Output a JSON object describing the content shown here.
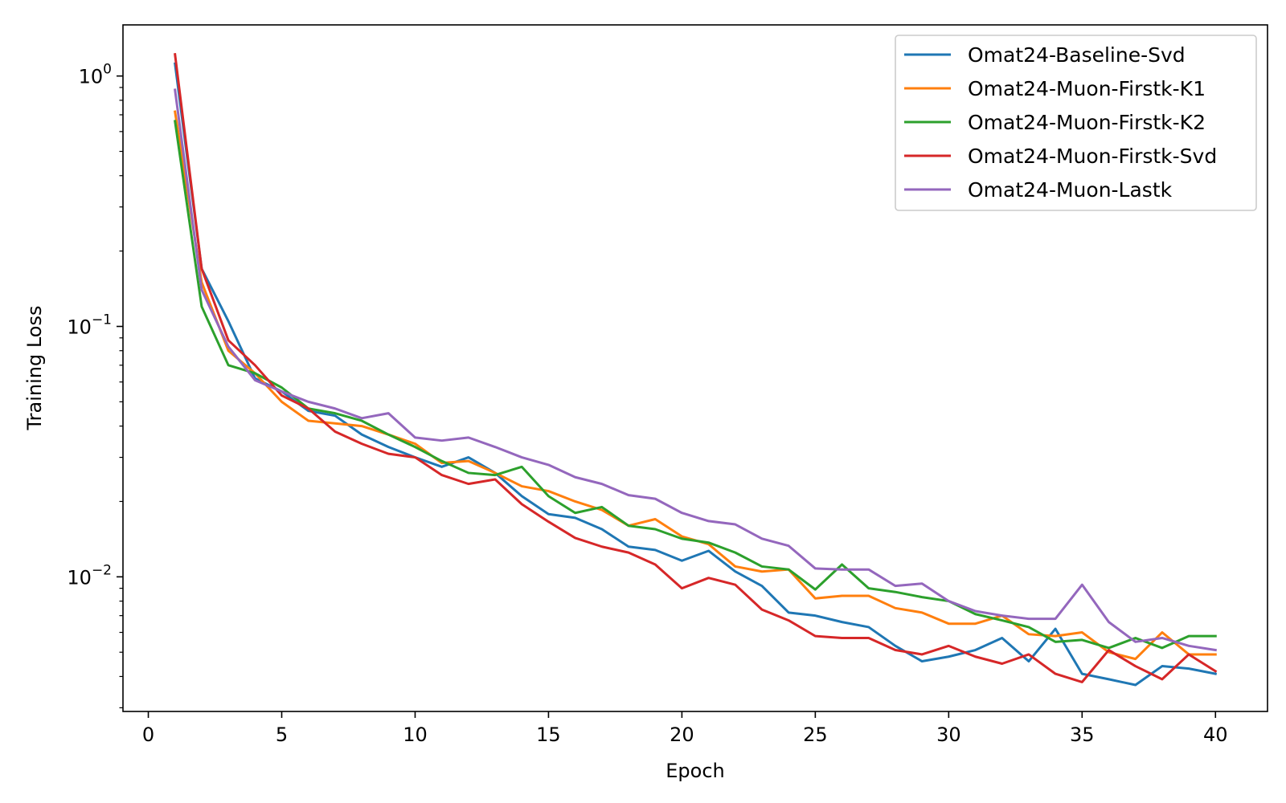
{
  "chart_data": {
    "type": "line",
    "title": "",
    "xlabel": "Epoch",
    "ylabel": "Training Loss",
    "xlim": [
      -0.95,
      41.95
    ],
    "ylim": [
      0.0029,
      1.6
    ],
    "yscale": "log",
    "x_ticks": [
      0,
      5,
      10,
      15,
      20,
      25,
      30,
      35,
      40
    ],
    "y_ticks": [
      0.01,
      0.1,
      1
    ],
    "y_tick_labels": [
      {
        "base": "10",
        "exp": "−2"
      },
      {
        "base": "10",
        "exp": "−1"
      },
      {
        "base": "10",
        "exp": "0"
      }
    ],
    "grid": false,
    "legend_position": "top-right",
    "x": [
      1,
      2,
      3,
      4,
      5,
      6,
      7,
      8,
      9,
      10,
      11,
      12,
      13,
      14,
      15,
      16,
      17,
      18,
      19,
      20,
      21,
      22,
      23,
      24,
      25,
      26,
      27,
      28,
      29,
      30,
      31,
      32,
      33,
      34,
      35,
      36,
      37,
      38,
      39,
      40
    ],
    "series": [
      {
        "name": "Omat24-Baseline-Svd",
        "color": "#1f77b4",
        "values": [
          1.12,
          0.17,
          0.105,
          0.062,
          0.055,
          0.046,
          0.044,
          0.037,
          0.033,
          0.03,
          0.0275,
          0.03,
          0.026,
          0.021,
          0.0178,
          0.0172,
          0.0155,
          0.0132,
          0.0128,
          0.0116,
          0.0127,
          0.0105,
          0.0092,
          0.0072,
          0.007,
          0.0066,
          0.0063,
          0.0053,
          0.0046,
          0.0048,
          0.0051,
          0.0057,
          0.0046,
          0.0062,
          0.0041,
          0.0039,
          0.0037,
          0.0044,
          0.0043,
          0.0041
        ]
      },
      {
        "name": "Omat24-Muon-Firstk-K1",
        "color": "#ff7f0e",
        "values": [
          0.72,
          0.15,
          0.08,
          0.065,
          0.05,
          0.042,
          0.041,
          0.04,
          0.037,
          0.034,
          0.0285,
          0.029,
          0.026,
          0.023,
          0.022,
          0.02,
          0.0185,
          0.016,
          0.017,
          0.0145,
          0.0135,
          0.011,
          0.0105,
          0.0107,
          0.0082,
          0.0084,
          0.0084,
          0.0075,
          0.0072,
          0.0065,
          0.0065,
          0.007,
          0.0059,
          0.0058,
          0.006,
          0.005,
          0.0047,
          0.006,
          0.0049,
          0.0049
        ]
      },
      {
        "name": "Omat24-Muon-Firstk-K2",
        "color": "#2ca02c",
        "values": [
          0.66,
          0.12,
          0.07,
          0.065,
          0.057,
          0.047,
          0.045,
          0.042,
          0.037,
          0.033,
          0.029,
          0.026,
          0.0255,
          0.0275,
          0.021,
          0.018,
          0.019,
          0.016,
          0.0155,
          0.0142,
          0.0137,
          0.0125,
          0.011,
          0.0107,
          0.0089,
          0.0112,
          0.009,
          0.0087,
          0.0083,
          0.008,
          0.0071,
          0.0067,
          0.0063,
          0.0055,
          0.0056,
          0.0052,
          0.0057,
          0.0052,
          0.0058,
          0.0058
        ]
      },
      {
        "name": "Omat24-Muon-Firstk-Svd",
        "color": "#d62728",
        "values": [
          1.22,
          0.17,
          0.088,
          0.07,
          0.053,
          0.047,
          0.038,
          0.034,
          0.031,
          0.03,
          0.0255,
          0.0235,
          0.0245,
          0.0195,
          0.0166,
          0.0143,
          0.0132,
          0.0125,
          0.0112,
          0.009,
          0.0099,
          0.0093,
          0.0074,
          0.0067,
          0.0058,
          0.0057,
          0.0057,
          0.0051,
          0.0049,
          0.0053,
          0.0048,
          0.0045,
          0.0049,
          0.0041,
          0.0038,
          0.0051,
          0.0044,
          0.0039,
          0.0049,
          0.0042
        ]
      },
      {
        "name": "Omat24-Muon-Lastk",
        "color": "#9467bd",
        "values": [
          0.88,
          0.14,
          0.083,
          0.061,
          0.055,
          0.05,
          0.047,
          0.043,
          0.045,
          0.036,
          0.035,
          0.036,
          0.033,
          0.03,
          0.028,
          0.025,
          0.0235,
          0.0212,
          0.0205,
          0.018,
          0.0167,
          0.0162,
          0.0142,
          0.0133,
          0.0108,
          0.0107,
          0.0107,
          0.0092,
          0.0094,
          0.008,
          0.0073,
          0.007,
          0.0068,
          0.0068,
          0.0093,
          0.0066,
          0.0055,
          0.0057,
          0.0053,
          0.0051
        ]
      }
    ]
  }
}
